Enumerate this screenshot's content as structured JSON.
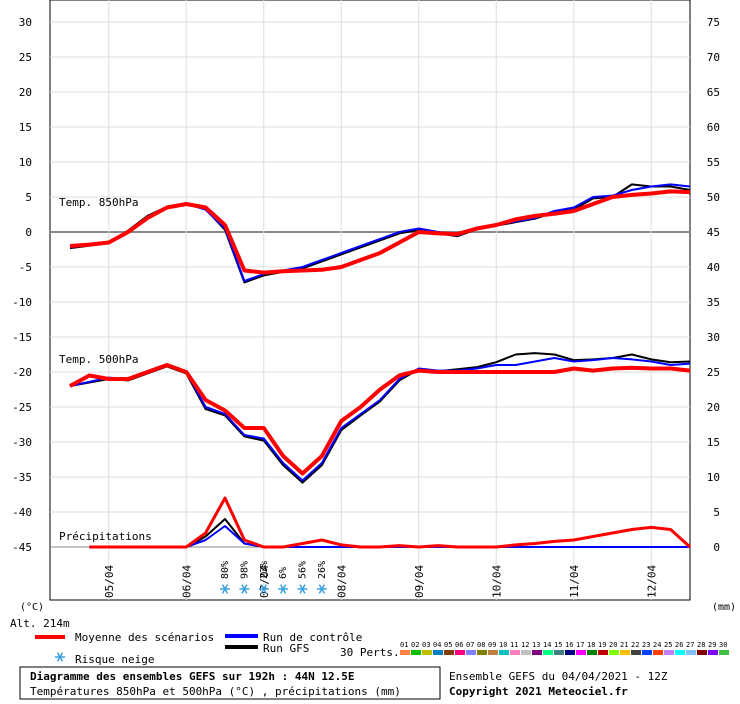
{
  "chart_data": {
    "type": "line",
    "left_axis_label": "(°C)",
    "right_axis_label": "(mm)",
    "left_ticks": [
      "30",
      "25",
      "20",
      "15",
      "10",
      "5",
      "0",
      "-5",
      "-10",
      "-15",
      "-20",
      "-25",
      "-30",
      "-35",
      "-40",
      "-45"
    ],
    "right_ticks": [
      "75",
      "70",
      "65",
      "60",
      "55",
      "50",
      "45",
      "40",
      "35",
      "30",
      "25",
      "20",
      "15",
      "10",
      "5",
      "0"
    ],
    "x_ticks": [
      "05/04",
      "06/04",
      "07/04",
      "08/04",
      "09/04",
      "10/04",
      "11/04",
      "12/04"
    ],
    "ylim_temp": [
      -45,
      30
    ],
    "ylim_precip": [
      0,
      75
    ],
    "x_hours": [
      0,
      192
    ],
    "panel_labels": {
      "t850": "Temp. 850hPa",
      "t500": "Temp. 500hPa",
      "precip": "Précipitations"
    },
    "alt_label": "Alt. 214m",
    "series": [
      {
        "name": "Moyenne des scénarios",
        "color": "#ff0000",
        "t850_hours": [
          0,
          6,
          12,
          18,
          24,
          30,
          36,
          42,
          48,
          54,
          60,
          66,
          72,
          78,
          84,
          90,
          96,
          102,
          108,
          114,
          120,
          126,
          132,
          138,
          144,
          150,
          156,
          162,
          168,
          174,
          180,
          186,
          192
        ],
        "t850": [
          -2,
          -1.8,
          -1.5,
          0,
          2,
          3.5,
          4,
          3.5,
          1,
          -5.5,
          -5.8,
          -5.6,
          -5.5,
          -5.4,
          -5,
          -4,
          -3,
          -1.5,
          0,
          -0.2,
          -0.3,
          0.5,
          1,
          1.8,
          2.3,
          2.6,
          3,
          4,
          5,
          5.3,
          5.5,
          5.8,
          5.7
        ],
        "t500_hours": [
          0,
          6,
          12,
          18,
          24,
          30,
          36,
          42,
          48,
          54,
          60,
          66,
          72,
          78,
          84,
          90,
          96,
          102,
          108,
          114,
          120,
          126,
          132,
          138,
          144,
          150,
          156,
          162,
          168,
          174,
          180,
          186,
          192
        ],
        "t500": [
          -22,
          -20.5,
          -21,
          -21,
          -20,
          -19,
          -20,
          -24,
          -25.5,
          -28,
          -28,
          -32,
          -34.5,
          -32,
          -27,
          -25,
          -22.5,
          -20.5,
          -19.8,
          -20,
          -20,
          -20,
          -20,
          -20,
          -20,
          -20,
          -19.5,
          -19.8,
          -19.5,
          -19.4,
          -19.5,
          -19.5,
          -19.8
        ],
        "precip_hours": [
          6,
          36,
          42,
          48,
          54,
          60,
          66,
          72,
          78,
          84,
          90,
          96,
          102,
          108,
          114,
          120,
          126,
          132,
          138,
          144,
          150,
          156,
          162,
          168,
          174,
          180,
          186,
          192
        ],
        "precip": [
          0,
          0,
          2,
          7,
          1,
          0,
          0,
          0.5,
          1,
          0.3,
          0,
          0,
          0.2,
          0,
          0.2,
          0,
          0,
          0,
          0.3,
          0.5,
          0.8,
          1,
          1.5,
          2,
          2.5,
          2.8,
          2.5,
          0
        ]
      },
      {
        "name": "Run de contrôle",
        "color": "#0000ff",
        "t850_hours": [
          0,
          12,
          18,
          24,
          30,
          36,
          42,
          48,
          54,
          60,
          66,
          72,
          78,
          84,
          90,
          96,
          102,
          108,
          114,
          120,
          126,
          132,
          138,
          144,
          150,
          156,
          162,
          168,
          174,
          180,
          186,
          192
        ],
        "t850": [
          -2.2,
          -1.5,
          0,
          2.2,
          3.5,
          4,
          3.2,
          0.5,
          -7,
          -6,
          -5.5,
          -5,
          -4,
          -3,
          -2,
          -1,
          0,
          0.5,
          0,
          -0.5,
          0.5,
          1,
          1.5,
          2,
          3,
          3.5,
          5,
          5.2,
          6,
          6.5,
          6.8,
          6.5
        ],
        "t500_hours": [
          0,
          12,
          18,
          24,
          30,
          36,
          42,
          48,
          54,
          60,
          66,
          72,
          78,
          84,
          90,
          96,
          102,
          108,
          114,
          120,
          126,
          132,
          138,
          144,
          150,
          156,
          162,
          168,
          174,
          180,
          186,
          192
        ],
        "t500": [
          -22,
          -20.8,
          -21,
          -20,
          -19,
          -20,
          -25,
          -26,
          -29,
          -29.5,
          -33,
          -35.5,
          -33,
          -28,
          -26,
          -24,
          -21,
          -19.5,
          -19.8,
          -19.8,
          -19.5,
          -19,
          -19,
          -18.5,
          -18,
          -18.5,
          -18.3,
          -18,
          -18.2,
          -18.5,
          -19,
          -18.8
        ],
        "precip_hours": [
          6,
          36,
          42,
          48,
          54,
          60,
          192
        ],
        "precip": [
          0,
          0,
          1,
          3,
          0.5,
          0,
          0
        ]
      },
      {
        "name": "Run GFS",
        "color": "#000000",
        "t850_hours": [
          0,
          12,
          18,
          24,
          30,
          36,
          42,
          48,
          54,
          60,
          66,
          72,
          78,
          84,
          90,
          96,
          102,
          108,
          114,
          120,
          126,
          132,
          138,
          144,
          150,
          156,
          162,
          168,
          174,
          180,
          186,
          192
        ],
        "t850": [
          -2.3,
          -1.6,
          0.2,
          2.3,
          3.6,
          4.1,
          3.3,
          0.3,
          -7.2,
          -6.2,
          -5.7,
          -5.2,
          -4.2,
          -3.2,
          -2.2,
          -1.2,
          -0.2,
          0.3,
          -0.2,
          -0.6,
          0.4,
          0.9,
          1.4,
          1.9,
          2.8,
          3.2,
          4.8,
          5,
          6.8,
          6.5,
          6.5,
          6
        ],
        "t500_hours": [
          0,
          12,
          18,
          24,
          30,
          36,
          42,
          48,
          54,
          60,
          66,
          72,
          78,
          84,
          90,
          96,
          102,
          108,
          114,
          120,
          126,
          132,
          138,
          144,
          150,
          156,
          162,
          168,
          174,
          180,
          186,
          192
        ],
        "t500": [
          -22,
          -21,
          -21.2,
          -20.2,
          -19.2,
          -20.2,
          -25.3,
          -26.2,
          -29.2,
          -29.8,
          -33.3,
          -35.8,
          -33.3,
          -28.3,
          -26.2,
          -24.2,
          -21.2,
          -19.6,
          -19.9,
          -19.6,
          -19.3,
          -18.6,
          -17.5,
          -17.3,
          -17.5,
          -18.3,
          -18.2,
          -18,
          -17.5,
          -18.2,
          -18.6,
          -18.5
        ],
        "precip_hours": [
          6,
          36,
          42,
          48,
          54,
          60,
          192
        ],
        "precip": [
          0,
          0,
          1.5,
          4,
          0.5,
          0,
          0
        ]
      }
    ],
    "snow_risk": {
      "hours": [
        48,
        54,
        60,
        66,
        72,
        78
      ],
      "labels": [
        "80%",
        "98%",
        "23%",
        "6%",
        "56%",
        "26%"
      ]
    }
  },
  "legend": {
    "mean": "Moyenne des scénarios",
    "control": "Run de contrôle",
    "gfs": "Run GFS",
    "snow": "Risque neige",
    "perts": "30 Perts.",
    "pert_numbers": [
      "01",
      "02",
      "03",
      "04",
      "05",
      "06",
      "07",
      "08",
      "09",
      "10",
      "11",
      "12",
      "13",
      "14",
      "15",
      "16",
      "17",
      "18",
      "19",
      "20",
      "21",
      "22",
      "23",
      "24",
      "25",
      "26",
      "27",
      "28",
      "29",
      "30"
    ],
    "pert_colors": [
      "#ff8040",
      "#00c000",
      "#c0c000",
      "#0080c0",
      "#804000",
      "#ff0080",
      "#8080ff",
      "#808000",
      "#c08040",
      "#00c0c0",
      "#ff80c0",
      "#c0c0c0",
      "#800080",
      "#00ff80",
      "#408080",
      "#000080",
      "#ff00ff",
      "#008000",
      "#c00000",
      "#80ff00",
      "#ffc000",
      "#404040",
      "#0040ff",
      "#ff4000",
      "#c080ff",
      "#00ffff",
      "#80c0ff",
      "#800000",
      "#8000ff",
      "#40c040"
    ]
  },
  "footer": {
    "title_line1": "Diagramme des ensembles GEFS sur 192h : 44N 12.5E",
    "title_line2": "Températures 850hPa et 500hPa (°C) , précipitations (mm)",
    "run_info": "Ensemble GEFS du 04/04/2021 - 12Z",
    "copyright": "Copyright 2021 Meteociel.fr"
  }
}
